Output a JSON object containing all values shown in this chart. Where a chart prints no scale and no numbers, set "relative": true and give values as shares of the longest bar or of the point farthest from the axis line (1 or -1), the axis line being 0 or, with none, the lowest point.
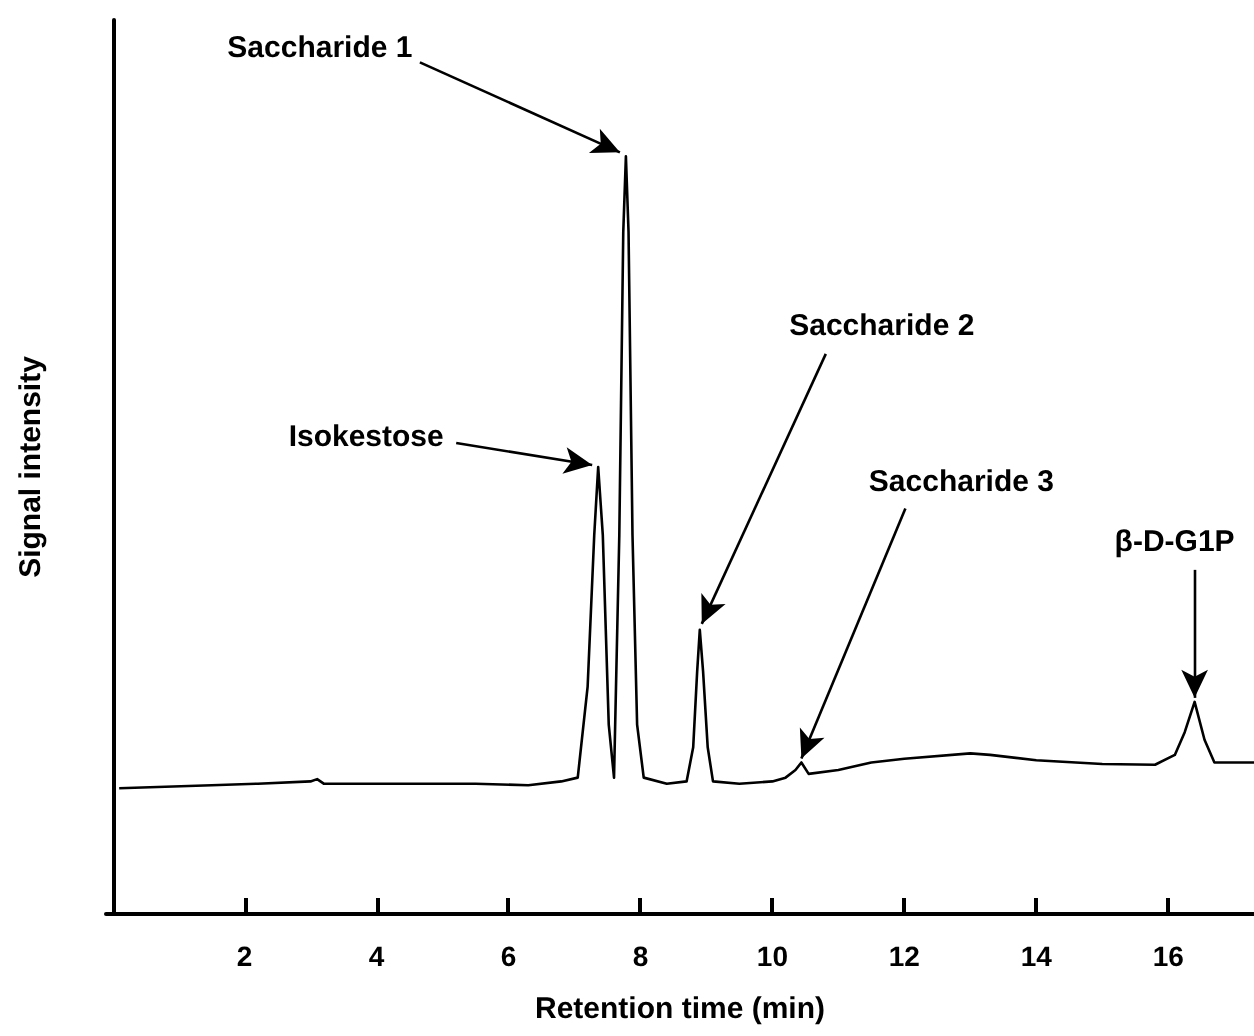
{
  "chart_data": {
    "type": "line",
    "xlabel": "Retention time (min)",
    "ylabel": "Signal intensity",
    "relative": true,
    "color": "#000000",
    "marker": "none",
    "line_style": "solid",
    "grid": false,
    "xlim": [
      -0.1,
      17.3
    ],
    "xticks": [
      2,
      4,
      6,
      8,
      10,
      12,
      14,
      16
    ],
    "x": [
      0.1,
      1.5,
      2.2,
      3.0,
      3.1,
      3.2,
      4.5,
      5.5,
      6.3,
      6.8,
      7.05,
      7.2,
      7.3,
      7.36,
      7.43,
      7.52,
      7.6,
      7.68,
      7.74,
      7.78,
      7.82,
      7.88,
      7.95,
      8.05,
      8.4,
      8.7,
      8.8,
      8.86,
      8.9,
      8.95,
      9.02,
      9.1,
      9.5,
      10.0,
      10.2,
      10.35,
      10.44,
      10.55,
      11.0,
      11.5,
      12.0,
      13.0,
      13.3,
      14.0,
      15.0,
      15.8,
      16.1,
      16.25,
      16.4,
      16.55,
      16.7,
      17.3
    ],
    "values": [
      0.166,
      0.17,
      0.172,
      0.175,
      0.178,
      0.172,
      0.172,
      0.172,
      0.17,
      0.175,
      0.18,
      0.3,
      0.5,
      0.59,
      0.5,
      0.25,
      0.18,
      0.5,
      0.9,
      1,
      0.9,
      0.5,
      0.25,
      0.18,
      0.172,
      0.175,
      0.22,
      0.32,
      0.375,
      0.32,
      0.22,
      0.175,
      0.172,
      0.175,
      0.18,
      0.19,
      0.2,
      0.185,
      0.19,
      0.2,
      0.205,
      0.212,
      0.21,
      0.203,
      0.198,
      0.197,
      0.21,
      0.24,
      0.28,
      0.23,
      0.2,
      0.2
    ],
    "annotations": [
      {
        "text": "Saccharide 1",
        "x": 7.78,
        "y": 1
      },
      {
        "text": "Isokestose",
        "x": 7.36,
        "y": 0.59
      },
      {
        "text": "Saccharide 2",
        "x": 8.9,
        "y": 0.375
      },
      {
        "text": "Saccharide 3",
        "x": 10.44,
        "y": 0.2
      },
      {
        "text": "β-D-G1P",
        "x": 16.4,
        "y": 0.28
      }
    ]
  }
}
